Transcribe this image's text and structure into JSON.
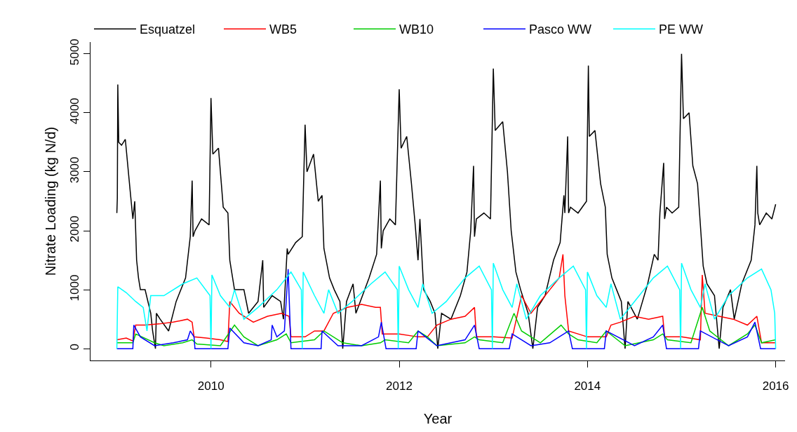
{
  "chart_data": {
    "type": "line",
    "xlabel": "Year",
    "ylabel": "Nitrate Loading (kg N/d)",
    "xlim": [
      2008.72,
      2016.1
    ],
    "xticks": [
      2010,
      2012,
      2014,
      2016
    ],
    "ylim": [
      -200,
      5200
    ],
    "yticks": [
      0,
      1000,
      2000,
      3000,
      4000,
      5000
    ],
    "legend": "top",
    "marker": "none",
    "line_style": "solid",
    "series": [
      {
        "name": "Esquatzel",
        "color": "#000000",
        "x": [
          2009.0,
          2009.005,
          2009.01,
          2009.02,
          2009.05,
          2009.09,
          2009.14,
          2009.17,
          2009.19,
          2009.21,
          2009.23,
          2009.25,
          2009.3,
          2009.36,
          2009.38,
          2009.41,
          2009.42,
          2009.46,
          2009.55,
          2009.63,
          2009.73,
          2009.78,
          2009.8,
          2009.81,
          2009.83,
          2009.9,
          2009.98,
          2010.0,
          2010.02,
          2010.08,
          2010.13,
          2010.18,
          2010.2,
          2010.25,
          2010.35,
          2010.4,
          2010.5,
          2010.55,
          2010.56,
          2010.65,
          2010.74,
          2010.77,
          2010.81,
          2010.82,
          2010.9,
          2010.97,
          2011.0,
          2011.02,
          2011.09,
          2011.14,
          2011.18,
          2011.2,
          2011.26,
          2011.31,
          2011.37,
          2011.4,
          2011.44,
          2011.51,
          2011.54,
          2011.61,
          2011.68,
          2011.76,
          2011.8,
          2011.81,
          2011.83,
          2011.9,
          2011.96,
          2012.0,
          2012.02,
          2012.08,
          2012.13,
          2012.17,
          2012.2,
          2012.22,
          2012.26,
          2012.33,
          2012.38,
          2012.41,
          2012.45,
          2012.55,
          2012.65,
          2012.72,
          2012.76,
          2012.79,
          2012.8,
          2012.82,
          2012.9,
          2012.97,
          2013.0,
          2013.02,
          2013.1,
          2013.15,
          2013.19,
          2013.24,
          2013.29,
          2013.37,
          2013.42,
          2013.47,
          2013.55,
          2013.64,
          2013.71,
          2013.75,
          2013.76,
          2013.79,
          2013.8,
          2013.82,
          2013.9,
          2013.99,
          2014.01,
          2014.02,
          2014.08,
          2014.14,
          2014.19,
          2014.21,
          2014.26,
          2014.31,
          2014.36,
          2014.4,
          2014.43,
          2014.53,
          2014.64,
          2014.71,
          2014.75,
          2014.77,
          2014.81,
          2014.82,
          2014.84,
          2014.9,
          2014.97,
          2015.0,
          2015.02,
          2015.08,
          2015.12,
          2015.17,
          2015.23,
          2015.27,
          2015.35,
          2015.4,
          2015.44,
          2015.52,
          2015.56,
          2015.64,
          2015.74,
          2015.78,
          2015.8,
          2015.81,
          2015.83,
          2015.9,
          2015.96,
          2016.0
        ],
        "values": [
          2300,
          2550,
          4480,
          3500,
          3450,
          3550,
          2700,
          2200,
          2500,
          1500,
          1200,
          1000,
          1000,
          600,
          300,
          0,
          600,
          500,
          300,
          800,
          1200,
          1900,
          2850,
          1900,
          2000,
          2200,
          2100,
          4250,
          3300,
          3400,
          2400,
          2300,
          1500,
          1000,
          1000,
          600,
          800,
          1500,
          700,
          900,
          800,
          500,
          1700,
          1600,
          1800,
          1900,
          3800,
          3000,
          3300,
          2500,
          2600,
          1700,
          1200,
          1000,
          800,
          0,
          800,
          1100,
          600,
          900,
          1200,
          1600,
          2850,
          1700,
          2000,
          2200,
          2100,
          4400,
          3400,
          3600,
          2800,
          2100,
          1500,
          2200,
          1000,
          800,
          600,
          0,
          600,
          500,
          900,
          1300,
          2000,
          3100,
          1900,
          2200,
          2300,
          2200,
          4750,
          3700,
          3850,
          3000,
          2000,
          1300,
          1000,
          600,
          0,
          700,
          900,
          1500,
          1800,
          2600,
          2300,
          3600,
          2300,
          2400,
          2300,
          2500,
          4800,
          3600,
          3700,
          2800,
          2400,
          1600,
          1200,
          1000,
          800,
          0,
          800,
          500,
          1100,
          1600,
          1500,
          2300,
          3150,
          2200,
          2400,
          2300,
          2400,
          5000,
          3900,
          4000,
          3100,
          2800,
          1400,
          1100,
          900,
          0,
          700,
          1000,
          500,
          1100,
          1500,
          2100,
          3100,
          2300,
          2100,
          2300,
          2200,
          2450
        ]
      },
      {
        "name": "WB5",
        "color": "#ff0000",
        "x": [
          2009.0,
          2009.1,
          2009.17,
          2009.2,
          2009.3,
          2009.45,
          2009.6,
          2009.75,
          2009.8,
          2009.82,
          2009.95,
          2010.1,
          2010.18,
          2010.2,
          2010.3,
          2010.45,
          2010.6,
          2010.75,
          2010.83,
          2010.85,
          2011.0,
          2011.1,
          2011.2,
          2011.3,
          2011.45,
          2011.6,
          2011.75,
          2011.8,
          2011.82,
          2012.0,
          2012.2,
          2012.3,
          2012.4,
          2012.55,
          2012.7,
          2012.8,
          2012.82,
          2013.0,
          2013.2,
          2013.3,
          2013.4,
          2013.5,
          2013.6,
          2013.7,
          2013.74,
          2013.76,
          2013.8,
          2014.0,
          2014.2,
          2014.25,
          2014.35,
          2014.5,
          2014.65,
          2014.8,
          2014.82,
          2015.0,
          2015.2,
          2015.22,
          2015.25,
          2015.4,
          2015.55,
          2015.7,
          2015.8,
          2015.85,
          2016.0
        ],
        "values": [
          150,
          180,
          130,
          400,
          400,
          420,
          450,
          500,
          450,
          200,
          180,
          150,
          120,
          800,
          600,
          450,
          550,
          600,
          550,
          200,
          200,
          300,
          300,
          600,
          700,
          750,
          700,
          700,
          250,
          250,
          200,
          200,
          400,
          500,
          550,
          700,
          200,
          200,
          180,
          900,
          600,
          800,
          1000,
          1200,
          1600,
          900,
          300,
          200,
          200,
          400,
          450,
          550,
          500,
          550,
          200,
          200,
          150,
          1250,
          600,
          550,
          500,
          400,
          550,
          100,
          100
        ]
      },
      {
        "name": "WB10",
        "color": "#00cc00",
        "x": [
          2009.0,
          2009.17,
          2009.2,
          2009.4,
          2009.5,
          2009.7,
          2009.8,
          2009.85,
          2010.1,
          2010.25,
          2010.35,
          2010.5,
          2010.7,
          2010.8,
          2010.85,
          2011.1,
          2011.2,
          2011.4,
          2011.6,
          2011.8,
          2011.85,
          2012.1,
          2012.2,
          2012.3,
          2012.4,
          2012.7,
          2012.8,
          2012.85,
          2013.1,
          2013.22,
          2013.3,
          2013.5,
          2013.72,
          2013.8,
          2013.9,
          2014.1,
          2014.2,
          2014.4,
          2014.7,
          2014.8,
          2014.85,
          2015.1,
          2015.22,
          2015.3,
          2015.5,
          2015.7,
          2015.78,
          2015.85,
          2016.0
        ],
        "values": [
          100,
          100,
          250,
          100,
          50,
          100,
          150,
          80,
          50,
          400,
          200,
          50,
          150,
          250,
          100,
          150,
          300,
          100,
          50,
          100,
          150,
          100,
          300,
          200,
          50,
          100,
          200,
          150,
          100,
          600,
          300,
          100,
          400,
          250,
          150,
          100,
          300,
          50,
          150,
          250,
          150,
          100,
          700,
          300,
          50,
          250,
          400,
          100,
          150
        ]
      },
      {
        "name": "Pasco WW",
        "color": "#0000ff",
        "x": [
          2009.0,
          2009.17,
          2009.18,
          2009.25,
          2009.4,
          2009.6,
          2009.75,
          2009.78,
          2009.82,
          2009.83,
          2010.18,
          2010.2,
          2010.35,
          2010.5,
          2010.64,
          2010.65,
          2010.7,
          2010.78,
          2010.82,
          2010.85,
          2011.17,
          2011.18,
          2011.35,
          2011.6,
          2011.78,
          2011.81,
          2011.86,
          2012.18,
          2012.2,
          2012.4,
          2012.7,
          2012.8,
          2012.85,
          2013.17,
          2013.2,
          2013.4,
          2013.6,
          2013.75,
          2013.8,
          2013.84,
          2014.18,
          2014.2,
          2014.5,
          2014.7,
          2014.8,
          2014.84,
          2015.18,
          2015.2,
          2015.5,
          2015.7,
          2015.78,
          2015.84,
          2016.0
        ],
        "values": [
          0,
          0,
          400,
          200,
          50,
          100,
          150,
          300,
          200,
          0,
          0,
          350,
          100,
          50,
          150,
          400,
          200,
          300,
          1350,
          0,
          0,
          300,
          50,
          50,
          200,
          450,
          0,
          0,
          300,
          50,
          150,
          400,
          0,
          0,
          250,
          50,
          100,
          250,
          300,
          0,
          0,
          300,
          50,
          200,
          400,
          0,
          0,
          300,
          50,
          200,
          450,
          0,
          0
        ]
      },
      {
        "name": "PE WW",
        "color": "#00ffff",
        "x": [
          2009.0,
          2009.01,
          2009.1,
          2009.2,
          2009.28,
          2009.32,
          2009.36,
          2009.5,
          2009.7,
          2009.85,
          2009.99,
          2010.0,
          2010.01,
          2010.1,
          2010.2,
          2010.25,
          2010.35,
          2010.5,
          2010.7,
          2010.85,
          2010.96,
          2010.97,
          2010.98,
          2011.1,
          2011.2,
          2011.25,
          2011.35,
          2011.5,
          2011.7,
          2011.85,
          2011.98,
          2011.99,
          2012.0,
          2012.1,
          2012.2,
          2012.25,
          2012.35,
          2012.5,
          2012.7,
          2012.85,
          2012.98,
          2012.99,
          2013.0,
          2013.1,
          2013.2,
          2013.25,
          2013.35,
          2013.5,
          2013.7,
          2013.85,
          2013.98,
          2013.99,
          2014.0,
          2014.1,
          2014.2,
          2014.25,
          2014.35,
          2014.5,
          2014.7,
          2014.85,
          2014.98,
          2014.99,
          2015.0,
          2015.1,
          2015.2,
          2015.25,
          2015.35,
          2015.5,
          2015.7,
          2015.85,
          2015.95,
          2015.99,
          2016.0
        ],
        "values": [
          0,
          1050,
          950,
          800,
          700,
          300,
          900,
          900,
          1100,
          1200,
          900,
          0,
          1250,
          900,
          700,
          1000,
          500,
          700,
          1000,
          1300,
          1000,
          0,
          1300,
          900,
          600,
          1000,
          600,
          800,
          1100,
          1300,
          1000,
          0,
          1400,
          1000,
          700,
          1100,
          600,
          800,
          1200,
          1400,
          1000,
          0,
          1450,
          1000,
          700,
          1100,
          500,
          900,
          1200,
          1400,
          1000,
          0,
          1300,
          900,
          700,
          1100,
          500,
          800,
          1200,
          1400,
          1000,
          0,
          1450,
          1000,
          700,
          1100,
          500,
          900,
          1200,
          1350,
          1000,
          600,
          0
        ]
      }
    ]
  }
}
